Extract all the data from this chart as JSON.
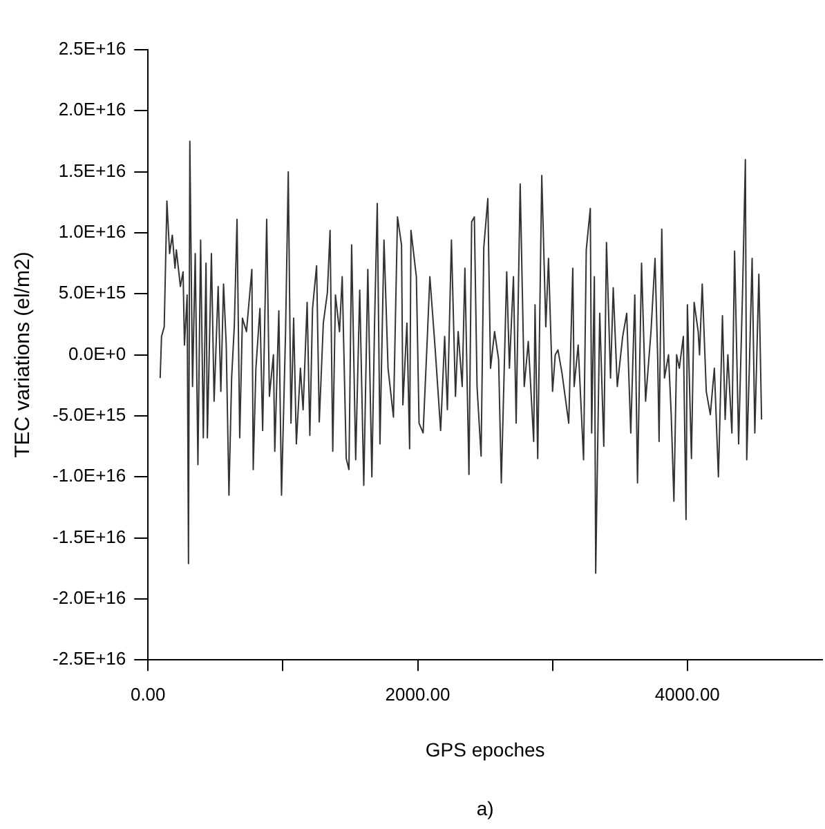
{
  "chart_data": {
    "type": "line",
    "xlabel": "GPS epoches",
    "ylabel": "TEC variations (el/m2)",
    "annotations": [
      "a)"
    ],
    "xlim": [
      0,
      5000
    ],
    "xticks": [
      {
        "value": 0,
        "label": "0.00"
      },
      {
        "value": 1000,
        "label": null
      },
      {
        "value": 2000,
        "label": "2000.00"
      },
      {
        "value": 3000,
        "label": null
      },
      {
        "value": 4000,
        "label": "4000.00"
      }
    ],
    "ylim": [
      -2.5e+16,
      2.5e+16
    ],
    "yticks": [
      {
        "value": -2.5e+16,
        "label": "-2.5E+16"
      },
      {
        "value": -2e+16,
        "label": "-2.0E+16"
      },
      {
        "value": -1.5e+16,
        "label": "-1.5E+16"
      },
      {
        "value": -1e+16,
        "label": "-1.0E+16"
      },
      {
        "value": -5000000000000000.0,
        "label": "-5.0E+15"
      },
      {
        "value": 0,
        "label": "0.0E+0"
      },
      {
        "value": 5000000000000000.0,
        "label": "5.0E+15"
      },
      {
        "value": 1e+16,
        "label": "1.0E+16"
      },
      {
        "value": 1.5e+16,
        "label": "1.5E+16"
      },
      {
        "value": 2e+16,
        "label": "2.0E+16"
      },
      {
        "value": 2.5e+16,
        "label": "2.5E+16"
      }
    ],
    "grid": false,
    "legend": false,
    "marker": "none",
    "line_style": "solid",
    "x": [
      90,
      100,
      120,
      140,
      160,
      180,
      200,
      210,
      240,
      260,
      270,
      290,
      300,
      310,
      330,
      350,
      370,
      390,
      410,
      430,
      440,
      470,
      490,
      520,
      540,
      560,
      580,
      600,
      620,
      640,
      660,
      680,
      700,
      730,
      770,
      780,
      800,
      830,
      850,
      880,
      900,
      930,
      940,
      970,
      990,
      1020,
      1040,
      1060,
      1080,
      1100,
      1130,
      1150,
      1180,
      1200,
      1220,
      1250,
      1270,
      1300,
      1330,
      1350,
      1370,
      1390,
      1420,
      1440,
      1470,
      1490,
      1510,
      1540,
      1570,
      1600,
      1630,
      1660,
      1680,
      1700,
      1720,
      1750,
      1780,
      1820,
      1850,
      1880,
      1890,
      1920,
      1940,
      1950,
      1990,
      2010,
      2040,
      2070,
      2090,
      2130,
      2170,
      2200,
      2220,
      2250,
      2280,
      2300,
      2330,
      2350,
      2380,
      2400,
      2420,
      2440,
      2470,
      2490,
      2520,
      2540,
      2570,
      2600,
      2620,
      2660,
      2680,
      2710,
      2730,
      2760,
      2790,
      2820,
      2860,
      2870,
      2890,
      2920,
      2950,
      2970,
      3000,
      3020,
      3040,
      3070,
      3120,
      3150,
      3160,
      3190,
      3230,
      3250,
      3280,
      3290,
      3310,
      3320,
      3350,
      3380,
      3400,
      3430,
      3450,
      3480,
      3520,
      3550,
      3580,
      3610,
      3630,
      3660,
      3690,
      3730,
      3760,
      3780,
      3790,
      3810,
      3830,
      3860,
      3880,
      3900,
      3920,
      3940,
      3970,
      3990,
      4000,
      4030,
      4050,
      4080,
      4090,
      4110,
      4140,
      4170,
      4200,
      4230,
      4260,
      4280,
      4300,
      4330,
      4350,
      4380,
      4410,
      4430,
      4440,
      4460,
      4480,
      4500,
      4530,
      4550
    ],
    "series": [
      {
        "color": "#333333",
        "values": [
          -1900000000000000.0,
          1500000000000000.0,
          2300000000000000.0,
          1.26e+16,
          8300000000000000.0,
          9800000000000000.0,
          7100000000000000.0,
          8600000000000000.0,
          5600000000000000.0,
          6800000000000000.0,
          800000000000000.0,
          4900000000000000.0,
          -1.71e+16,
          1.75e+16,
          -2600000000000000.0,
          8300000000000000.0,
          -9000000000000000.0,
          9400000000000000.0,
          -6800000000000000.0,
          7500000000000000.0,
          -6800000000000000.0,
          8300000000000000.0,
          -3800000000000000.0,
          5600000000000000.0,
          -3000000000000000.0,
          5800000000000000.0,
          800000000000000.0,
          -1.15e+16,
          -1900000000000000.0,
          2400000000000000.0,
          1.11e+16,
          -6800000000000000.0,
          3000000000000000.0,
          1900000000000000.0,
          7000000000000000.0,
          -9400000000000000.0,
          -1100000000000000.0,
          3800000000000000.0,
          -6200000000000000.0,
          1.11e+16,
          -3400000000000000.0,
          0,
          -7900000000000000.0,
          3600000000000000.0,
          -1.15e+16,
          1900000000000000.0,
          1.5e+16,
          -5600000000000000.0,
          3000000000000000.0,
          -7300000000000000.0,
          -1100000000000000.0,
          -4500000000000000.0,
          4300000000000000.0,
          -6600000000000000.0,
          3800000000000000.0,
          7300000000000000.0,
          -5500000000000000.0,
          2600000000000000.0,
          5100000000000000.0,
          1.02e+16,
          -7900000000000000.0,
          4900000000000000.0,
          1900000000000000.0,
          6400000000000000.0,
          -8500000000000000.0,
          -9400000000000000.0,
          9000000000000000.0,
          -8600000000000000.0,
          5300000000000000.0,
          -1.07e+16,
          7000000000000000.0,
          -1e+16,
          2600000000000000.0,
          1.24e+16,
          -7300000000000000.0,
          9400000000000000.0,
          -1100000000000000.0,
          -5100000000000000.0,
          1.13e+16,
          9000000000000000.0,
          -4100000000000000.0,
          2600000000000000.0,
          -7700000000000000.0,
          1.02e+16,
          6400000000000000.0,
          -5600000000000000.0,
          -6400000000000000.0,
          1100000000000000.0,
          6400000000000000.0,
          400000000000000.0,
          -6200000000000000.0,
          1500000000000000.0,
          -4500000000000000.0,
          9400000000000000.0,
          -3400000000000000.0,
          1900000000000000.0,
          -2600000000000000.0,
          7100000000000000.0,
          -9800000000000000.0,
          1.09e+16,
          1.13e+16,
          -2600000000000000.0,
          -8300000000000000.0,
          8800000000000000.0,
          1.28e+16,
          -1100000000000000.0,
          1900000000000000.0,
          -400000000000000.0,
          -1.05e+16,
          6800000000000000.0,
          -1100000000000000.0,
          6400000000000000.0,
          -5600000000000000.0,
          1.4e+16,
          -2600000000000000.0,
          1100000000000000.0,
          -7100000000000000.0,
          4100000000000000.0,
          -8500000000000000.0,
          1.47e+16,
          2300000000000000.0,
          7900000000000000.0,
          -3000000000000000.0,
          0,
          400000000000000.0,
          -1500000000000000.0,
          -5600000000000000.0,
          7100000000000000.0,
          -2600000000000000.0,
          800000000000000.0,
          -8600000000000000.0,
          8600000000000000.0,
          1.2e+16,
          -6400000000000000.0,
          6400000000000000.0,
          -1.79e+16,
          3400000000000000.0,
          -7500000000000000.0,
          9200000000000000.0,
          -1900000000000000.0,
          5500000000000000.0,
          -2600000000000000.0,
          1500000000000000.0,
          3400000000000000.0,
          -6400000000000000.0,
          4900000000000000.0,
          -1.05e+16,
          7500000000000000.0,
          -3800000000000000.0,
          1900000000000000.0,
          7900000000000000.0,
          -400000000000000.0,
          -7100000000000000.0,
          1.03e+16,
          -1900000000000000.0,
          0,
          -4900000000000000.0,
          -1.2e+16,
          0,
          -1100000000000000.0,
          1500000000000000.0,
          -1.35e+16,
          4100000000000000.0,
          -8500000000000000.0,
          4300000000000000.0,
          1900000000000000.0,
          0,
          5800000000000000.0,
          -3000000000000000.0,
          -4900000000000000.0,
          -1100000000000000.0,
          -1e+16,
          3200000000000000.0,
          -5300000000000000.0,
          0,
          -6400000000000000.0,
          8500000000000000.0,
          -7300000000000000.0,
          5600000000000000.0,
          1.6e+16,
          -8600000000000000.0,
          -800000000000000.0,
          7900000000000000.0,
          -6400000000000000.0,
          6600000000000000.0,
          -5300000000000000.0
        ]
      }
    ]
  }
}
